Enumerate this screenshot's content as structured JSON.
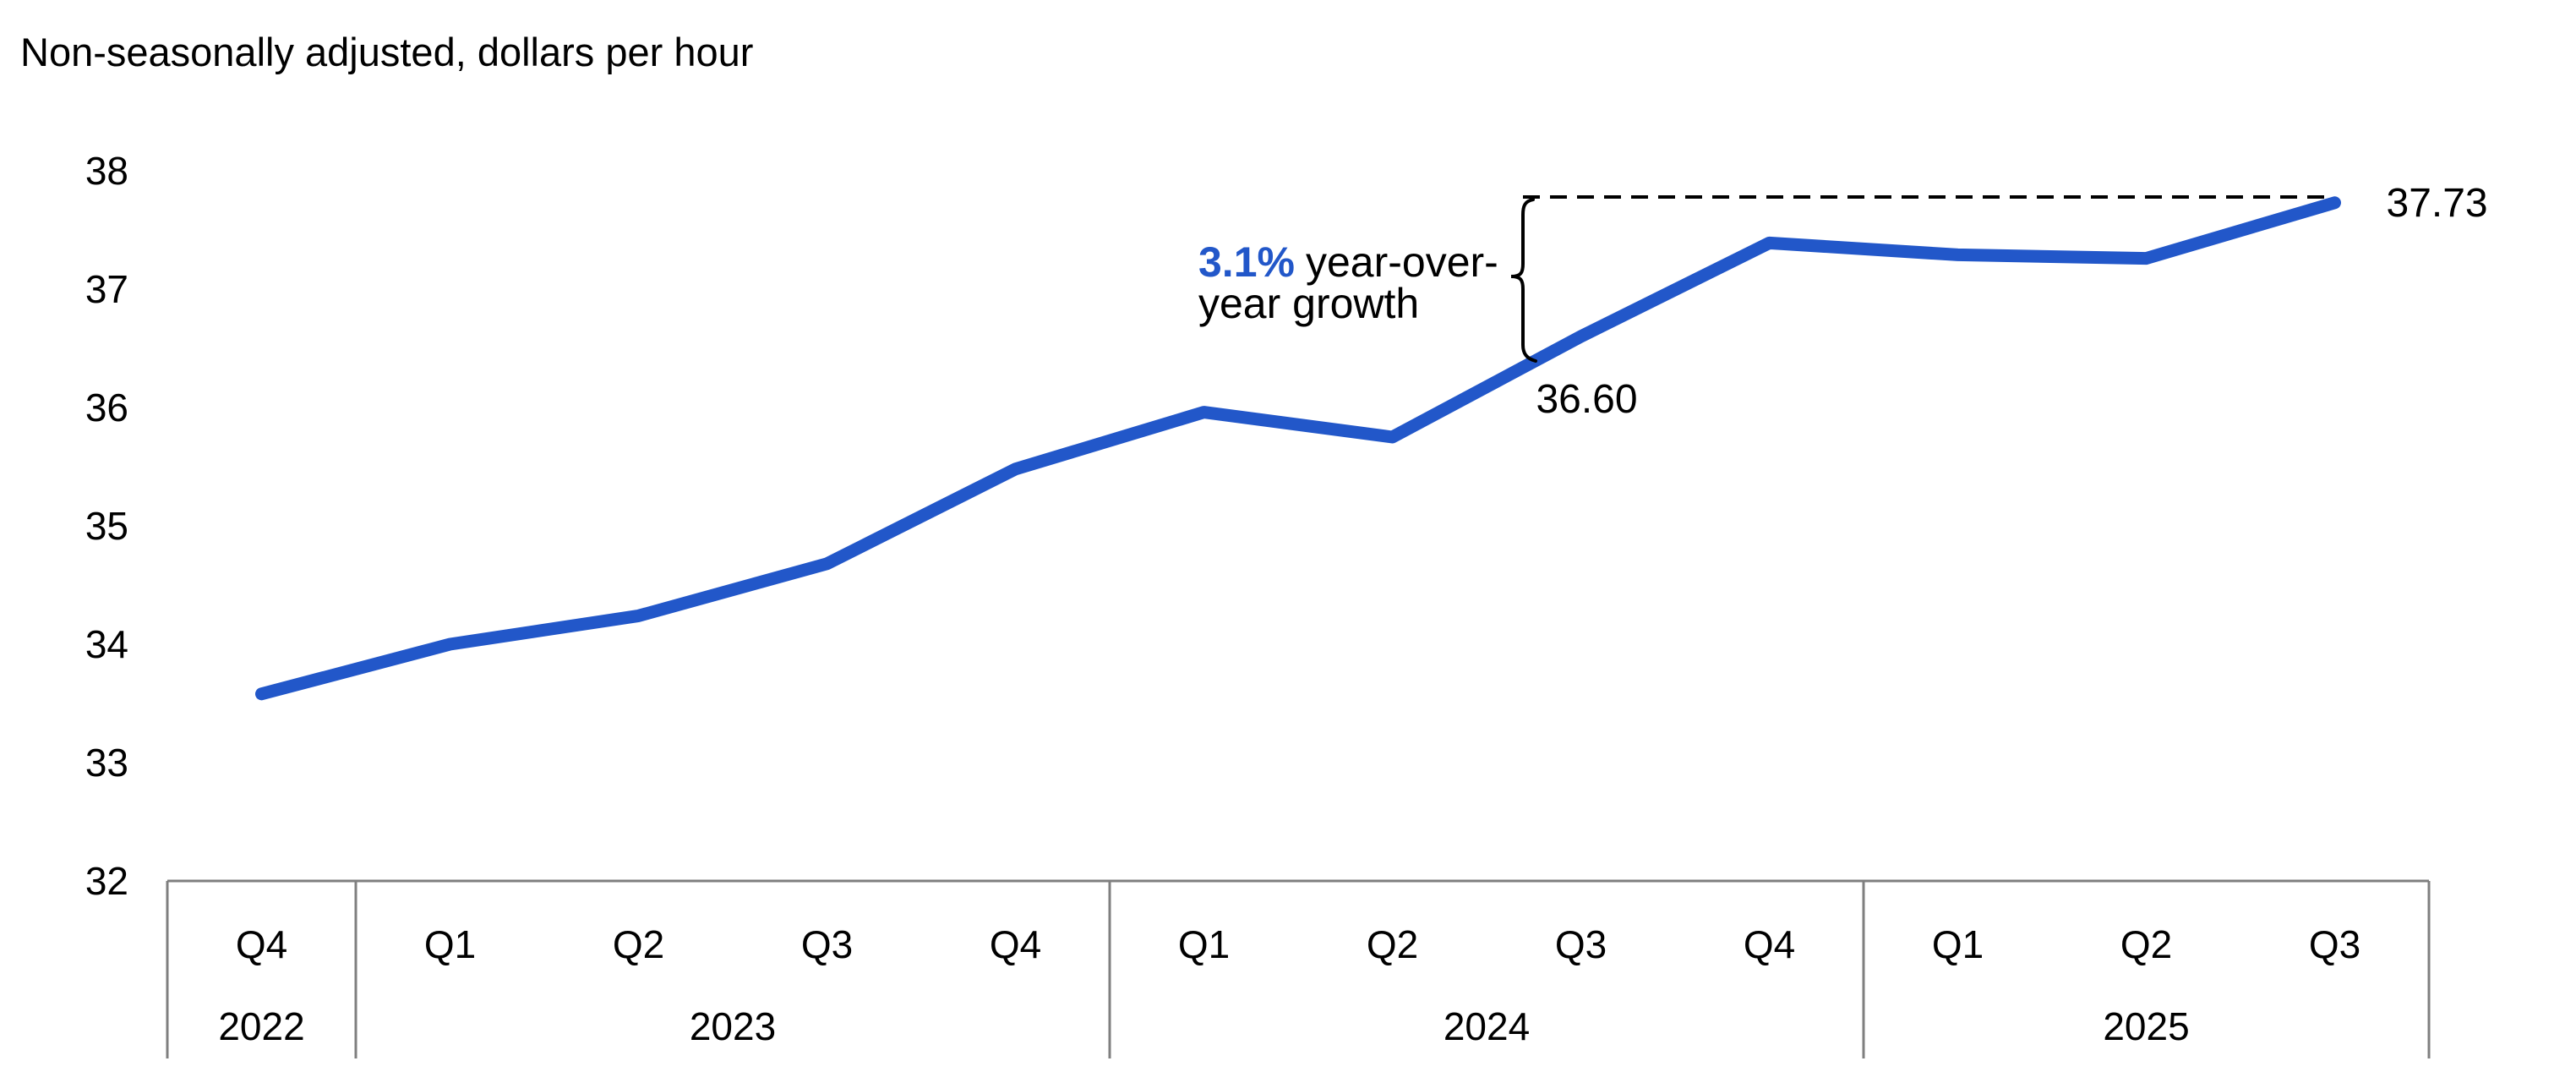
{
  "title": "Non-seasonally adjusted, dollars per hour",
  "colors": {
    "line": "#2257c9",
    "accent_text": "#2257c9",
    "axis": "#7f7f7f",
    "text": "#000000",
    "reference": "#000000",
    "background": "#ffffff"
  },
  "y_axis": {
    "ticks": [
      38,
      37,
      36,
      35,
      34,
      33,
      32
    ],
    "min": 32,
    "max": 38
  },
  "x_axis": {
    "quarters": [
      "Q4",
      "Q1",
      "Q2",
      "Q3",
      "Q4",
      "Q1",
      "Q2",
      "Q3",
      "Q4",
      "Q1",
      "Q2",
      "Q3"
    ],
    "year_groups": [
      {
        "label": "2022",
        "start": 0,
        "count": 1
      },
      {
        "label": "2023",
        "start": 1,
        "count": 4
      },
      {
        "label": "2024",
        "start": 5,
        "count": 4
      },
      {
        "label": "2025",
        "start": 9,
        "count": 3
      }
    ]
  },
  "annotation": {
    "pct": "3.1%",
    "line1_rest": "year-over-",
    "line2": "year growth"
  },
  "point_labels": [
    {
      "index": 7,
      "text": "36.60"
    },
    {
      "index": 11,
      "text": "37.73"
    }
  ],
  "chart_data": {
    "type": "line",
    "title": "Non-seasonally adjusted, dollars per hour",
    "x": [
      "Q4 2022",
      "Q1 2023",
      "Q2 2023",
      "Q3 2023",
      "Q4 2023",
      "Q1 2024",
      "Q2 2024",
      "Q3 2024",
      "Q4 2024",
      "Q1 2025",
      "Q2 2025",
      "Q3 2025"
    ],
    "values": [
      33.58,
      34.0,
      34.24,
      34.68,
      35.48,
      35.96,
      35.75,
      36.6,
      37.39,
      37.29,
      37.26,
      37.73
    ],
    "ylabel": "dollars per hour",
    "ylim": [
      32,
      38
    ],
    "yticks": [
      32,
      33,
      34,
      35,
      36,
      37,
      38
    ],
    "grid": false,
    "legend": false,
    "line_color": "#2257c9",
    "annotations": [
      {
        "text": "3.1% year-over-year growth",
        "highlight": "3.1%",
        "type": "callout"
      },
      {
        "text": "36.60",
        "point": "Q3 2024",
        "type": "data-label"
      },
      {
        "text": "37.73",
        "point": "Q3 2025",
        "type": "data-label"
      },
      {
        "text": "dashed line from Q3 2024 bracket to Q3 2025 value at 37.73",
        "type": "reference-line"
      }
    ]
  }
}
